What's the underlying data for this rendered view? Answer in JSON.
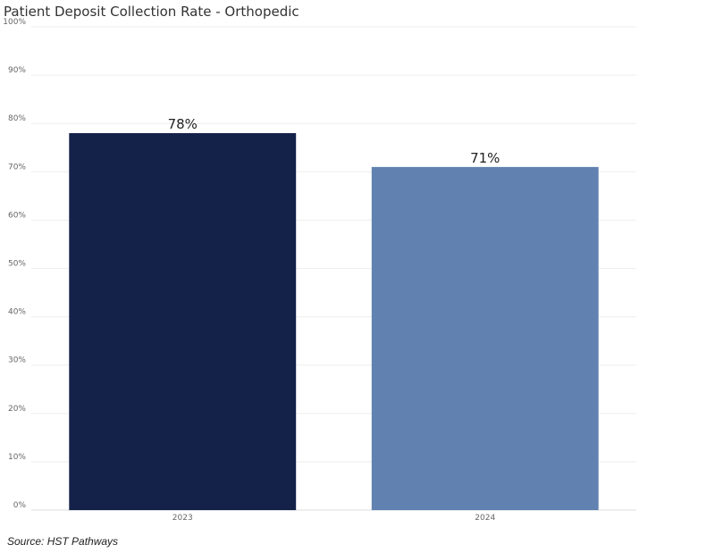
{
  "title": "Patient Deposit Collection Rate - Orthopedic",
  "source": "Source: HST Pathways",
  "colors": {
    "bar_2023": "#14224a",
    "bar_2024": "#6182b0",
    "grid": "#eeeeee"
  },
  "chart_data": {
    "type": "bar",
    "title": "Patient Deposit Collection Rate - Orthopedic",
    "xlabel": "",
    "ylabel": "",
    "categories": [
      "2023",
      "2024"
    ],
    "values": [
      78,
      71
    ],
    "data_labels": [
      "78%",
      "71%"
    ],
    "ylim": [
      0,
      100
    ],
    "y_ticks": [
      0,
      10,
      20,
      30,
      40,
      50,
      60,
      70,
      80,
      90,
      100
    ],
    "y_tick_labels": [
      "0%",
      "10%",
      "20%",
      "30%",
      "40%",
      "50%",
      "60%",
      "70%",
      "80%",
      "90%",
      "100%"
    ],
    "grid": true,
    "legend": "none"
  }
}
